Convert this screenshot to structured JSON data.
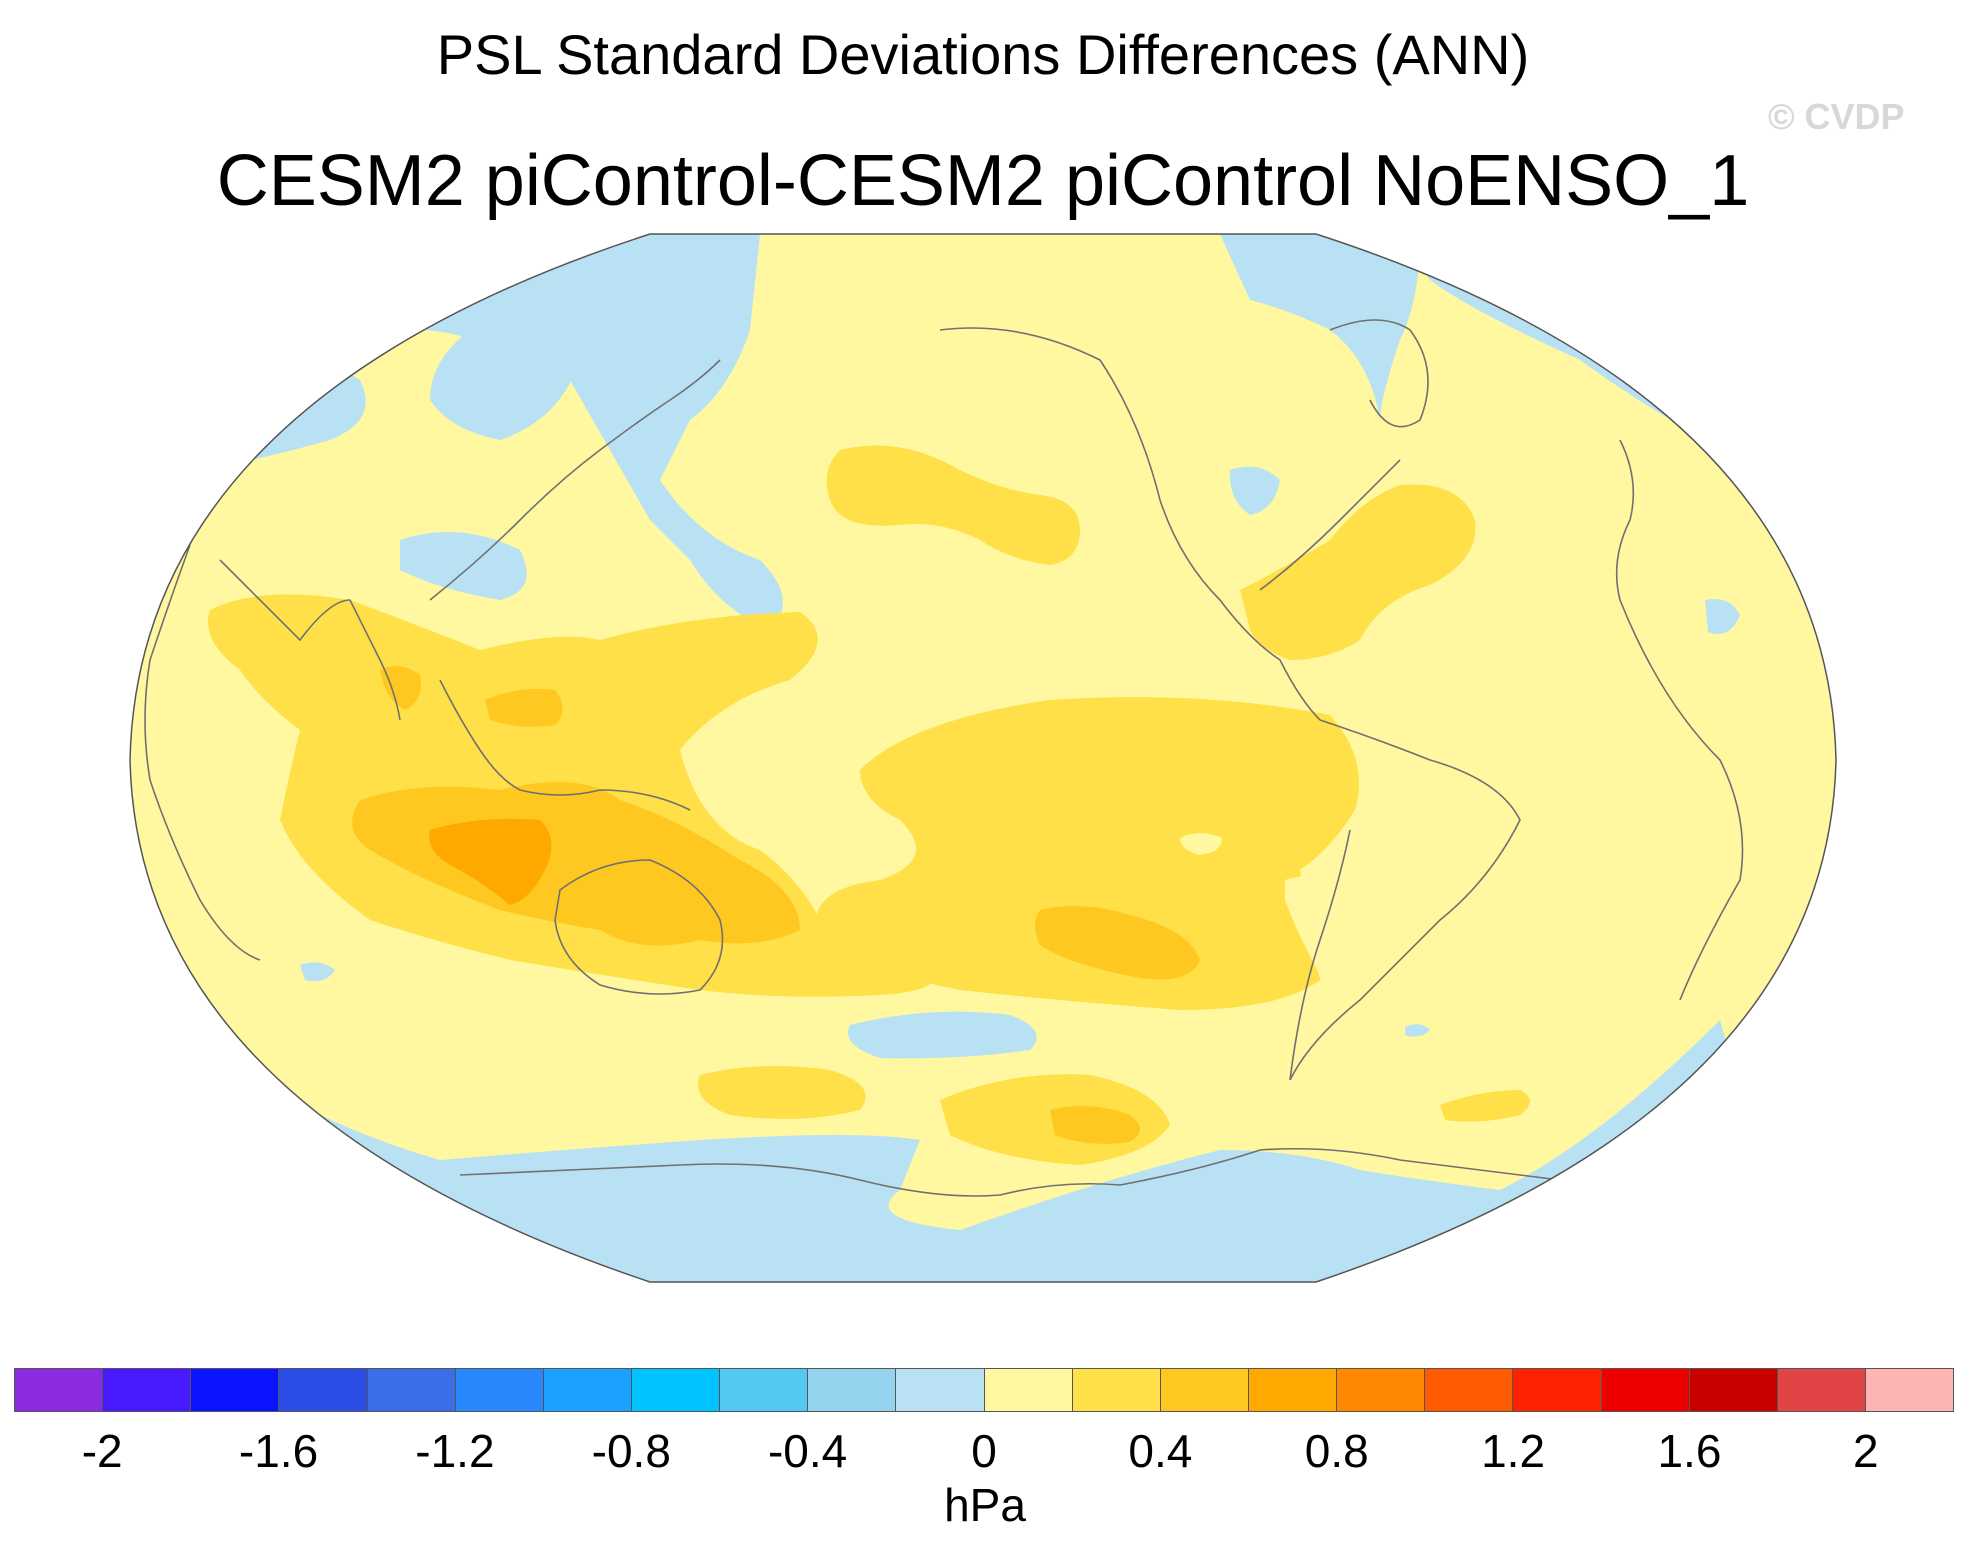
{
  "title": "PSL Standard Deviations Differences (ANN)",
  "subtitle": "CESM2 piControl-CESM2 piControl NoENSO_1",
  "watermark": "© CVDP",
  "colorbar": {
    "units": "hPa",
    "tick_labels": [
      "-2",
      "-1.6",
      "-1.2",
      "-0.8",
      "-0.4",
      "0",
      "0.4",
      "0.8",
      "1.2",
      "1.6",
      "2"
    ],
    "colors": [
      "#8a2be2",
      "#4a1aff",
      "#0a14ff",
      "#2a4ee6",
      "#3a6ee8",
      "#2a88ff",
      "#1aa0ff",
      "#00c4ff",
      "#52c8f2",
      "#94d2ee",
      "#b8e2f4",
      "#fff8a0",
      "#ffe048",
      "#ffc820",
      "#ffa800",
      "#ff8800",
      "#ff5a00",
      "#ff2200",
      "#ee0000",
      "#c80000",
      "#e04444",
      "#ffb4b4"
    ]
  },
  "map": {
    "projection": "Robinson-like global, centered on the Pacific (~150°W)",
    "variable": "PSL standard deviation difference",
    "ocean_land_background": "#fff8a0",
    "negative_regions_color": "#b8e2f4",
    "levels": {
      "0-0.2": "#fff8a0",
      "0.2-0.4": "#ffe048",
      "0.4-0.6": "#ffc820",
      "0.6-0.8": "#ffa800",
      "<0": "#b8e2f4"
    }
  }
}
